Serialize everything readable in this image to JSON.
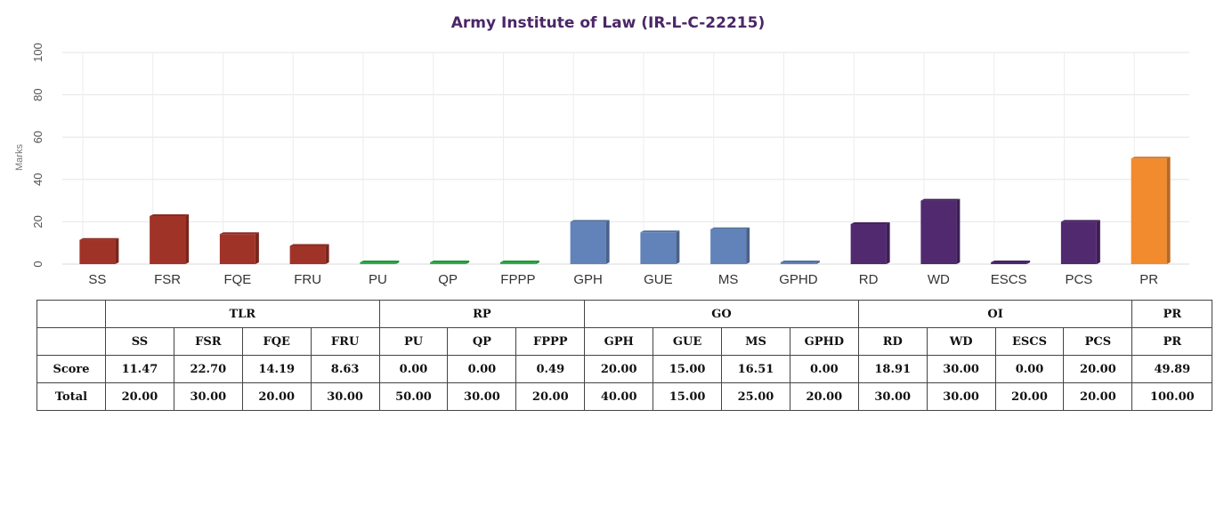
{
  "chart_data": {
    "type": "bar",
    "title": "Army Institute of Law (IR-L-C-22215)",
    "ylabel": "Marks",
    "ylim": [
      0,
      100
    ],
    "yticks": [
      0,
      20,
      40,
      60,
      80,
      100
    ],
    "grid": true,
    "categories": [
      "SS",
      "FSR",
      "FQE",
      "FRU",
      "PU",
      "QP",
      "FPPP",
      "GPH",
      "GUE",
      "MS",
      "GPHD",
      "RD",
      "WD",
      "ESCS",
      "PCS",
      "PR"
    ],
    "values": [
      11.47,
      22.7,
      14.19,
      8.63,
      0.0,
      0.0,
      0.49,
      20.0,
      15.0,
      16.51,
      0.0,
      18.91,
      30.0,
      0.0,
      20.0,
      49.89
    ],
    "groups": [
      "TLR",
      "TLR",
      "TLR",
      "TLR",
      "RP",
      "RP",
      "RP",
      "GO",
      "GO",
      "GO",
      "GO",
      "OI",
      "OI",
      "OI",
      "OI",
      "PR"
    ],
    "group_colors": {
      "TLR": "#a03327",
      "RP": "#2fae4a",
      "GO": "#6283b9",
      "OI": "#51296f",
      "PR": "#f28a2e"
    }
  },
  "table": {
    "groups": [
      {
        "label": "TLR",
        "span": 4
      },
      {
        "label": "RP",
        "span": 3
      },
      {
        "label": "GO",
        "span": 4
      },
      {
        "label": "OI",
        "span": 4
      },
      {
        "label": "PR",
        "span": 1
      }
    ],
    "params": [
      "SS",
      "FSR",
      "FQE",
      "FRU",
      "PU",
      "QP",
      "FPPP",
      "GPH",
      "GUE",
      "MS",
      "GPHD",
      "RD",
      "WD",
      "ESCS",
      "PCS",
      "PR"
    ],
    "score_label": "Score",
    "scores": [
      "11.47",
      "22.70",
      "14.19",
      "8.63",
      "0.00",
      "0.00",
      "0.49",
      "20.00",
      "15.00",
      "16.51",
      "0.00",
      "18.91",
      "30.00",
      "0.00",
      "20.00",
      "49.89"
    ],
    "total_label": "Total",
    "totals": [
      "20.00",
      "30.00",
      "20.00",
      "30.00",
      "50.00",
      "30.00",
      "20.00",
      "40.00",
      "15.00",
      "25.00",
      "20.00",
      "30.00",
      "30.00",
      "20.00",
      "20.00",
      "100.00"
    ]
  }
}
